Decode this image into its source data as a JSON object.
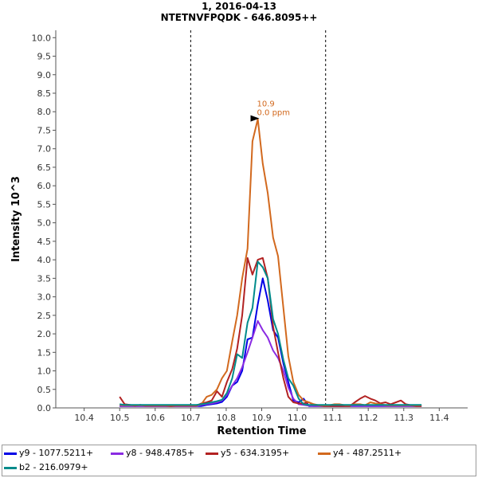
{
  "chart_data": {
    "type": "line",
    "title": "1, 2016-04-13",
    "subtitle": "NTETNVFPQDK - 646.8095++",
    "xlabel": "Retention Time",
    "ylabel": "Intensity 10^3",
    "xlim": [
      10.32,
      11.48
    ],
    "ylim": [
      0,
      10.2
    ],
    "x_ticks": [
      "10.4",
      "10.5",
      "10.6",
      "10.7",
      "10.8",
      "10.9",
      "11.0",
      "11.1",
      "11.2",
      "11.3",
      "11.4"
    ],
    "y_ticks": [
      "0.0",
      "0.5",
      "1.0",
      "1.5",
      "2.0",
      "2.5",
      "3.0",
      "3.5",
      "4.0",
      "4.5",
      "5.0",
      "5.5",
      "6.0",
      "6.5",
      "7.0",
      "7.5",
      "8.0",
      "8.5",
      "9.0",
      "9.5",
      "10.0"
    ],
    "vlines": [
      10.7,
      11.08
    ],
    "annotation": {
      "x": 10.9,
      "y": 7.82,
      "line1": "10.9",
      "line2": "0.0 ppm",
      "color": "#d2691e"
    },
    "x": [
      10.5,
      10.514,
      10.529,
      10.543,
      10.558,
      10.572,
      10.586,
      10.601,
      10.615,
      10.63,
      10.644,
      10.658,
      10.673,
      10.687,
      10.702,
      10.716,
      10.73,
      10.745,
      10.759,
      10.774,
      10.788,
      10.802,
      10.817,
      10.831,
      10.845,
      10.86,
      10.874,
      10.889,
      10.903,
      10.917,
      10.932,
      10.946,
      10.961,
      10.975,
      10.989,
      11.004,
      11.018,
      11.033,
      11.047,
      11.061,
      11.076,
      11.09,
      11.105,
      11.119,
      11.134,
      11.148,
      11.162,
      11.177,
      11.191,
      11.206,
      11.22,
      11.234,
      11.249,
      11.263,
      11.278,
      11.292,
      11.306,
      11.321,
      11.335,
      11.35
    ],
    "series": [
      {
        "name": "y9 - 1077.5211+",
        "color": "#0000e6",
        "values": [
          0.05,
          0.05,
          0.05,
          0.05,
          0.05,
          0.05,
          0.05,
          0.05,
          0.05,
          0.05,
          0.05,
          0.05,
          0.05,
          0.05,
          0.05,
          0.05,
          0.05,
          0.08,
          0.1,
          0.12,
          0.16,
          0.3,
          0.6,
          0.7,
          1.0,
          1.85,
          1.9,
          2.8,
          3.5,
          2.9,
          2.1,
          1.9,
          1.2,
          0.7,
          0.2,
          0.15,
          0.25,
          0.05,
          0.05,
          0.05,
          0.05,
          0.05,
          0.05,
          0.05,
          0.05,
          0.05,
          0.05,
          0.05,
          0.05,
          0.05,
          0.05,
          0.05,
          0.05,
          0.05,
          0.05,
          0.05,
          0.05,
          0.05,
          0.05,
          0.05
        ]
      },
      {
        "name": "y8 - 948.4785+",
        "color": "#8a2be2",
        "values": [
          0.05,
          0.05,
          0.05,
          0.05,
          0.05,
          0.05,
          0.05,
          0.05,
          0.05,
          0.05,
          0.05,
          0.05,
          0.05,
          0.05,
          0.05,
          0.05,
          0.08,
          0.1,
          0.12,
          0.15,
          0.2,
          0.35,
          0.6,
          0.8,
          1.1,
          1.5,
          1.9,
          2.35,
          2.1,
          1.9,
          1.55,
          1.35,
          1.0,
          0.55,
          0.25,
          0.1,
          0.08,
          0.06,
          0.05,
          0.05,
          0.05,
          0.05,
          0.05,
          0.05,
          0.05,
          0.05,
          0.05,
          0.05,
          0.05,
          0.05,
          0.05,
          0.05,
          0.05,
          0.05,
          0.05,
          0.05,
          0.05,
          0.05,
          0.05,
          0.05
        ]
      },
      {
        "name": "y5 - 634.3195+",
        "color": "#b22222",
        "values": [
          0.3,
          0.1,
          0.08,
          0.06,
          0.08,
          0.06,
          0.06,
          0.06,
          0.06,
          0.06,
          0.05,
          0.06,
          0.06,
          0.06,
          0.06,
          0.06,
          0.12,
          0.15,
          0.2,
          0.45,
          0.3,
          0.7,
          1.05,
          1.6,
          2.5,
          4.05,
          3.6,
          4.0,
          4.05,
          3.5,
          2.2,
          1.5,
          0.8,
          0.3,
          0.15,
          0.12,
          0.12,
          0.15,
          0.08,
          0.07,
          0.05,
          0.05,
          0.05,
          0.05,
          0.05,
          0.05,
          0.15,
          0.25,
          0.32,
          0.25,
          0.2,
          0.12,
          0.15,
          0.1,
          0.15,
          0.2,
          0.1,
          0.07,
          0.05,
          0.05
        ]
      },
      {
        "name": "y4 - 487.2511+",
        "color": "#d2691e",
        "values": [
          0.08,
          0.07,
          0.07,
          0.07,
          0.07,
          0.07,
          0.07,
          0.07,
          0.07,
          0.07,
          0.07,
          0.07,
          0.07,
          0.07,
          0.07,
          0.07,
          0.1,
          0.3,
          0.35,
          0.5,
          0.8,
          1.0,
          1.8,
          2.5,
          3.5,
          4.3,
          7.2,
          7.8,
          6.6,
          5.8,
          4.6,
          4.1,
          2.7,
          1.4,
          0.7,
          0.35,
          0.2,
          0.15,
          0.1,
          0.07,
          0.07,
          0.07,
          0.1,
          0.1,
          0.07,
          0.07,
          0.1,
          0.1,
          0.07,
          0.15,
          0.12,
          0.1,
          0.07,
          0.07,
          0.07,
          0.07,
          0.07,
          0.07,
          0.07,
          0.07
        ]
      },
      {
        "name": "b2 - 216.0979+",
        "color": "#008b8b",
        "values": [
          0.1,
          0.08,
          0.08,
          0.08,
          0.08,
          0.08,
          0.08,
          0.08,
          0.08,
          0.08,
          0.08,
          0.08,
          0.08,
          0.08,
          0.08,
          0.08,
          0.1,
          0.12,
          0.15,
          0.18,
          0.22,
          0.4,
          0.8,
          1.45,
          1.35,
          2.3,
          2.7,
          3.95,
          3.8,
          3.5,
          2.4,
          2.0,
          1.3,
          0.8,
          0.6,
          0.25,
          0.1,
          0.08,
          0.08,
          0.08,
          0.08,
          0.08,
          0.08,
          0.08,
          0.08,
          0.08,
          0.08,
          0.08,
          0.08,
          0.08,
          0.08,
          0.08,
          0.08,
          0.08,
          0.08,
          0.08,
          0.08,
          0.08,
          0.08,
          0.08
        ]
      }
    ]
  }
}
